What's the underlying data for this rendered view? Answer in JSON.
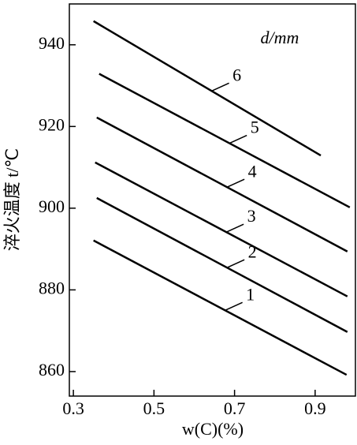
{
  "chart_data": {
    "type": "line",
    "x_label": "w(C)(%)",
    "y_label": "淬火温度 t/℃",
    "legend_title": "d/mm",
    "xlim": [
      0.29,
      1.0
    ],
    "xticks": [
      0.3,
      0.5,
      0.7,
      0.9
    ],
    "ylim": [
      854,
      950
    ],
    "yticks": [
      860,
      880,
      900,
      920,
      940
    ],
    "series": [
      {
        "name": "1",
        "color": "#000000",
        "x": [
          0.35,
          0.978
        ],
        "values": [
          892.1,
          859.2
        ]
      },
      {
        "name": "2",
        "color": "#000000",
        "x": [
          0.358,
          0.98
        ],
        "values": [
          902.5,
          869.7
        ]
      },
      {
        "name": "3",
        "color": "#000000",
        "x": [
          0.354,
          0.98
        ],
        "values": [
          911.2,
          878.4
        ]
      },
      {
        "name": "4",
        "color": "#000000",
        "x": [
          0.358,
          0.98
        ],
        "values": [
          922.2,
          889.4
        ]
      },
      {
        "name": "5",
        "color": "#000000",
        "x": [
          0.364,
          0.986
        ],
        "values": [
          932.9,
          900.2
        ]
      },
      {
        "name": "6",
        "color": "#000000",
        "x": [
          0.35,
          0.914
        ],
        "values": [
          945.8,
          912.9
        ]
      }
    ]
  }
}
